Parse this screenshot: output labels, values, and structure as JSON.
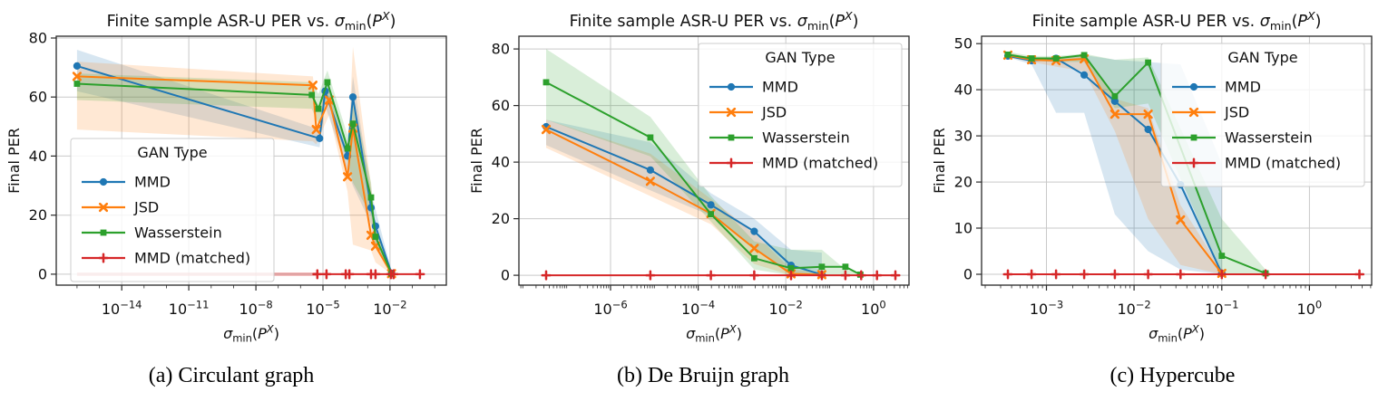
{
  "figure_title": "Finite sample ASR-U PER vs. sigma_min(P^X) — three graph types",
  "accent_colors": {
    "mmd": "#1f77b4",
    "jsd": "#ff7f0e",
    "wasserstein": "#2ca02c",
    "mmd_matched": "#d62728"
  },
  "captions": [
    "(a) Circulant graph",
    "(b) De Bruijn graph",
    "(c) Hypercube"
  ],
  "chart_data": [
    {
      "type": "line",
      "title": "Finite sample ASR-U PER vs. σ_min(P^X)",
      "title_runs": [
        {
          "t": "Finite sample ASR-U PER vs. "
        },
        {
          "t": "σ",
          "i": 1
        },
        {
          "t": "min",
          "sub": 1
        },
        {
          "t": "("
        },
        {
          "t": "P",
          "i": 1
        },
        {
          "t": "X",
          "i": 1,
          "sup": 1
        },
        {
          "t": ")"
        }
      ],
      "xlabel": "σ_min(P^X)",
      "xlabel_runs": [
        {
          "t": "σ",
          "i": 1
        },
        {
          "t": "min",
          "sub": 1
        },
        {
          "t": "("
        },
        {
          "t": "P",
          "i": 1
        },
        {
          "t": "X",
          "i": 1,
          "sup": 1
        },
        {
          "t": ")"
        }
      ],
      "ylabel": "Final PER",
      "x_scale": "log",
      "xlim_log10": [
        -16.93,
        0.52
      ],
      "ylim": [
        -3.7,
        80.6
      ],
      "xticks_log10": [
        -14,
        -11,
        -8,
        -5,
        -2
      ],
      "yticks": [
        0,
        20,
        40,
        60,
        80
      ],
      "x_minor": "decades",
      "grid": true,
      "legend": {
        "title": "GAN Type",
        "position": "lower-left"
      },
      "series": [
        {
          "name": "MMD",
          "color": "#1f77b4",
          "marker": "circle",
          "x_log10": [
            -16,
            -5.15,
            -4.9,
            -3.9,
            -3.66,
            -2.85,
            -2.65,
            -1.93
          ],
          "y": [
            70.5,
            46,
            62,
            40,
            60,
            22.5,
            16.3,
            0.3
          ],
          "band": {
            "lo": [
              62,
              43,
              57,
              35,
              30,
              17,
              10,
              0
            ],
            "hi": [
              76,
              49,
              66,
              44,
              67,
              28,
              22,
              1
            ]
          }
        },
        {
          "name": "JSD",
          "color": "#ff7f0e",
          "marker": "x",
          "x_log10": [
            -16,
            -5.45,
            -5.3,
            -4.72,
            -3.9,
            -3.66,
            -2.85,
            -2.65,
            -1.93
          ],
          "y": [
            67,
            64,
            49,
            59,
            33,
            49.5,
            13.2,
            9.5,
            0.2
          ],
          "band": {
            "lo": [
              49,
              45,
              44,
              54,
              28,
              10,
              8,
              4,
              0
            ],
            "hi": [
              72,
              67,
              55,
              63,
              37,
              77,
              30,
              15,
              1
            ]
          }
        },
        {
          "name": "Wasserstein",
          "color": "#2ca02c",
          "marker": "square",
          "x_log10": [
            -16,
            -5.5,
            -5.2,
            -4.8,
            -3.9,
            -3.66,
            -2.85,
            -2.65,
            -1.93
          ],
          "y": [
            64.5,
            60.7,
            56,
            65,
            42.6,
            51,
            26,
            12.7,
            0.2
          ],
          "band": {
            "lo": [
              59,
              56,
              51,
              60,
              38,
              31,
              20,
              9,
              0
            ],
            "hi": [
              68,
              65,
              61,
              69,
              47,
              60,
              31,
              16,
              1
            ]
          }
        },
        {
          "name": "MMD (matched)",
          "color": "#d62728",
          "marker": "plus",
          "x_log10": [
            -5.25,
            -4.84,
            -3.98,
            -3.82,
            -2.85,
            -2.65,
            -1.96,
            -1.84,
            -0.66
          ],
          "y": [
            0,
            0,
            0,
            0,
            0,
            0,
            0,
            0,
            0
          ],
          "band": {
            "x_log10": [
              -16,
              -5.25
            ],
            "lo": [
              -0.6,
              -0.6
            ],
            "hi": [
              0.6,
              0.6
            ],
            "alpha": 0.35
          }
        }
      ]
    },
    {
      "type": "line",
      "title": "Finite sample ASR-U PER vs. σ_min(P^X)",
      "title_runs": [
        {
          "t": "Finite sample ASR-U PER vs. "
        },
        {
          "t": "σ",
          "i": 1
        },
        {
          "t": "min",
          "sub": 1
        },
        {
          "t": "("
        },
        {
          "t": "P",
          "i": 1
        },
        {
          "t": "X",
          "i": 1,
          "sup": 1
        },
        {
          "t": ")"
        }
      ],
      "xlabel": "σ_min(P^X)",
      "xlabel_runs": [
        {
          "t": "σ",
          "i": 1
        },
        {
          "t": "min",
          "sub": 1
        },
        {
          "t": "("
        },
        {
          "t": "P",
          "i": 1
        },
        {
          "t": "X",
          "i": 1,
          "sup": 1
        },
        {
          "t": ")"
        }
      ],
      "ylabel": "Final PER",
      "x_scale": "log",
      "xlim_log10": [
        -8.09,
        0.81
      ],
      "ylim": [
        -3.5,
        84.5
      ],
      "xticks_log10": [
        -6,
        -4,
        -2,
        0
      ],
      "yticks": [
        0,
        20,
        40,
        60,
        80
      ],
      "x_minor": "decades+log",
      "grid": true,
      "legend": {
        "title": "GAN Type",
        "position": "upper-right"
      },
      "series": [
        {
          "name": "MMD",
          "color": "#1f77b4",
          "marker": "circle",
          "x_log10": [
            -7.47,
            -5.09,
            -3.71,
            -2.72,
            -1.88,
            -1.18
          ],
          "y": [
            52.5,
            37.2,
            24.9,
            15.5,
            3.5,
            0.2
          ],
          "band": {
            "lo": [
              46,
              30,
              21,
              10,
              0,
              0
            ],
            "hi": [
              55,
              47,
              29,
              20,
              9,
              8
            ]
          }
        },
        {
          "name": "JSD",
          "color": "#ff7f0e",
          "marker": "x",
          "x_log10": [
            -7.47,
            -5.09,
            -3.71,
            -2.72,
            -1.88,
            -1.18
          ],
          "y": [
            51.5,
            33.2,
            21.8,
            9.5,
            0.5,
            0.2
          ],
          "band": {
            "lo": [
              45,
              28,
              18,
              4,
              0,
              0
            ],
            "hi": [
              55,
              43,
              27,
              15,
              2,
              1
            ]
          }
        },
        {
          "name": "Wasserstein",
          "color": "#2ca02c",
          "marker": "square",
          "x_log10": [
            -7.47,
            -5.09,
            -3.71,
            -2.72,
            -1.88,
            -1.18,
            -0.64,
            -0.3
          ],
          "y": [
            68.2,
            48.7,
            21.6,
            6,
            2.5,
            3,
            3,
            0.2
          ],
          "band": {
            "lo": [
              55,
              42,
              19,
              2,
              0,
              0,
              0,
              0
            ],
            "hi": [
              80,
              56,
              28,
              12,
              9,
              9,
              2,
              1
            ]
          }
        },
        {
          "name": "MMD (matched)",
          "color": "#d62728",
          "marker": "plus",
          "x_log10": [
            -7.47,
            -5.09,
            -3.71,
            -2.72,
            -1.88,
            -1.18,
            -0.64,
            -0.28,
            0.08,
            0.5
          ],
          "y": [
            0,
            0,
            0,
            0,
            0,
            0,
            0,
            0,
            0,
            0
          ]
        }
      ]
    },
    {
      "type": "line",
      "title": "Finite sample ASR-U PER vs. σ_min(P^X)",
      "title_runs": [
        {
          "t": "Finite sample ASR-U PER vs. "
        },
        {
          "t": "σ",
          "i": 1
        },
        {
          "t": "min",
          "sub": 1
        },
        {
          "t": "("
        },
        {
          "t": "P",
          "i": 1
        },
        {
          "t": "X",
          "i": 1,
          "sup": 1
        },
        {
          "t": ")"
        }
      ],
      "xlabel": "σ_min(P^X)",
      "xlabel_runs": [
        {
          "t": "σ",
          "i": 1
        },
        {
          "t": "min",
          "sub": 1
        },
        {
          "t": "("
        },
        {
          "t": "P",
          "i": 1
        },
        {
          "t": "X",
          "i": 1,
          "sup": 1
        },
        {
          "t": ")"
        }
      ],
      "ylabel": "Final PER",
      "x_scale": "log",
      "xlim_log10": [
        -3.74,
        0.71
      ],
      "ylim": [
        -2.35,
        51.6
      ],
      "xticks_log10": [
        -3,
        -2,
        -1,
        0
      ],
      "yticks": [
        0,
        10,
        20,
        30,
        40,
        50
      ],
      "x_minor": "log",
      "grid": true,
      "legend": {
        "title": "GAN Type",
        "position": "upper-right"
      },
      "series": [
        {
          "name": "MMD",
          "color": "#1f77b4",
          "marker": "circle",
          "x_log10": [
            -3.44,
            -3.17,
            -2.89,
            -2.57,
            -2.22,
            -1.84,
            -1.47,
            -1.0
          ],
          "y": [
            47.3,
            46.3,
            46.8,
            43.2,
            37.5,
            31.4,
            19.4,
            0.2
          ],
          "band": {
            "lo": [
              47,
              45.5,
              35,
              35,
              13,
              5,
              1,
              0
            ],
            "hi": [
              47.8,
              47,
              47,
              47.5,
              46.5,
              46,
              45.5,
              24
            ]
          }
        },
        {
          "name": "JSD",
          "color": "#ff7f0e",
          "marker": "x",
          "x_log10": [
            -3.44,
            -3.17,
            -2.89,
            -2.57,
            -2.22,
            -1.84,
            -1.47,
            -1.0
          ],
          "y": [
            47.5,
            46.5,
            46.3,
            46.7,
            34.7,
            34.7,
            11.8,
            0.2
          ],
          "band": {
            "lo": [
              47,
              46,
              45,
              44,
              31,
              12,
              2,
              0
            ],
            "hi": [
              48,
              47,
              47,
              47.5,
              38,
              36,
              15,
              1
            ]
          }
        },
        {
          "name": "Wasserstein",
          "color": "#2ca02c",
          "marker": "square",
          "x_log10": [
            -3.44,
            -3.17,
            -2.89,
            -2.57,
            -2.22,
            -1.84,
            -1.0,
            -0.5
          ],
          "y": [
            47.6,
            46.8,
            46.8,
            47.5,
            38.6,
            45.9,
            4,
            0.2
          ],
          "band": {
            "lo": [
              47,
              46.3,
              46,
              46,
              36,
              37,
              0,
              0
            ],
            "hi": [
              48.2,
              47.3,
              47.3,
              47.8,
              46.5,
              47,
              12,
              1
            ]
          }
        },
        {
          "name": "MMD (matched)",
          "color": "#d62728",
          "marker": "plus",
          "x_log10": [
            -3.44,
            -3.17,
            -2.89,
            -2.57,
            -2.22,
            -1.84,
            -1.47,
            -1.0,
            -0.5,
            0.57
          ],
          "y": [
            0,
            0,
            0,
            0,
            0,
            0,
            0,
            0,
            0,
            0
          ]
        }
      ]
    }
  ]
}
